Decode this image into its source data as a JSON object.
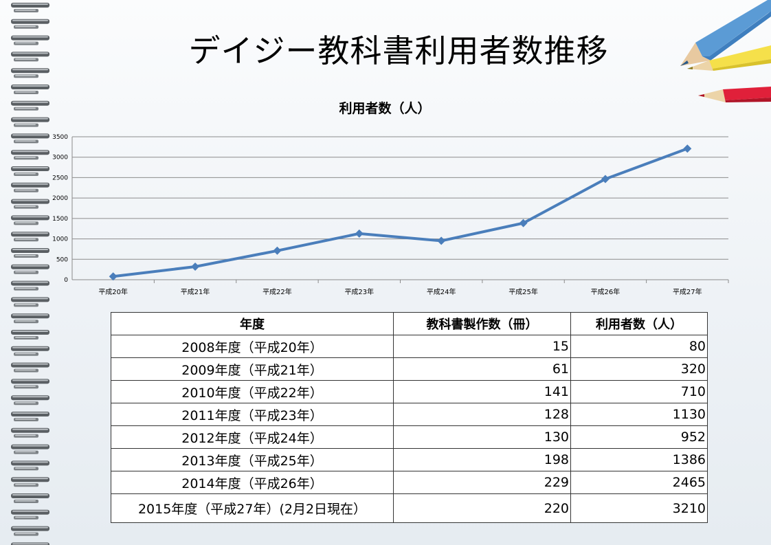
{
  "slide": {
    "title": "デイジー教科書利用者数推移"
  },
  "chart_data": {
    "type": "line",
    "title": "利用者数（人）",
    "categories": [
      "平成20年",
      "平成21年",
      "平成22年",
      "平成23年",
      "平成24年",
      "平成25年",
      "平成26年",
      "平成27年"
    ],
    "series": [
      {
        "values": [
          80,
          320,
          710,
          1130,
          952,
          1386,
          2465,
          3210
        ],
        "color": "#4a7ebb"
      }
    ],
    "yticks": [
      0,
      500,
      1000,
      1500,
      2000,
      2500,
      3000,
      3500
    ],
    "ylim": [
      0,
      3500
    ],
    "grid": true,
    "legend": "none"
  },
  "table": {
    "headers": [
      "年度",
      "教科書製作数（冊）",
      "利用者数（人）"
    ],
    "rows": [
      {
        "year": "2008年度（平成20年）",
        "books": "15",
        "users": "80"
      },
      {
        "year": "2009年度（平成21年）",
        "books": "61",
        "users": "320"
      },
      {
        "year": "2010年度（平成22年）",
        "books": "141",
        "users": "710"
      },
      {
        "year": "2011年度（平成23年）",
        "books": "128",
        "users": "1130"
      },
      {
        "year": "2012年度（平成24年）",
        "books": "130",
        "users": "952"
      },
      {
        "year": "2013年度（平成25年）",
        "books": "198",
        "users": "1386"
      },
      {
        "year": "2014年度（平成26年）",
        "books": "229",
        "users": "2465"
      },
      {
        "year": "2015年度（平成27年）(2月2日現在）",
        "books": "220",
        "users": "3210"
      }
    ]
  }
}
